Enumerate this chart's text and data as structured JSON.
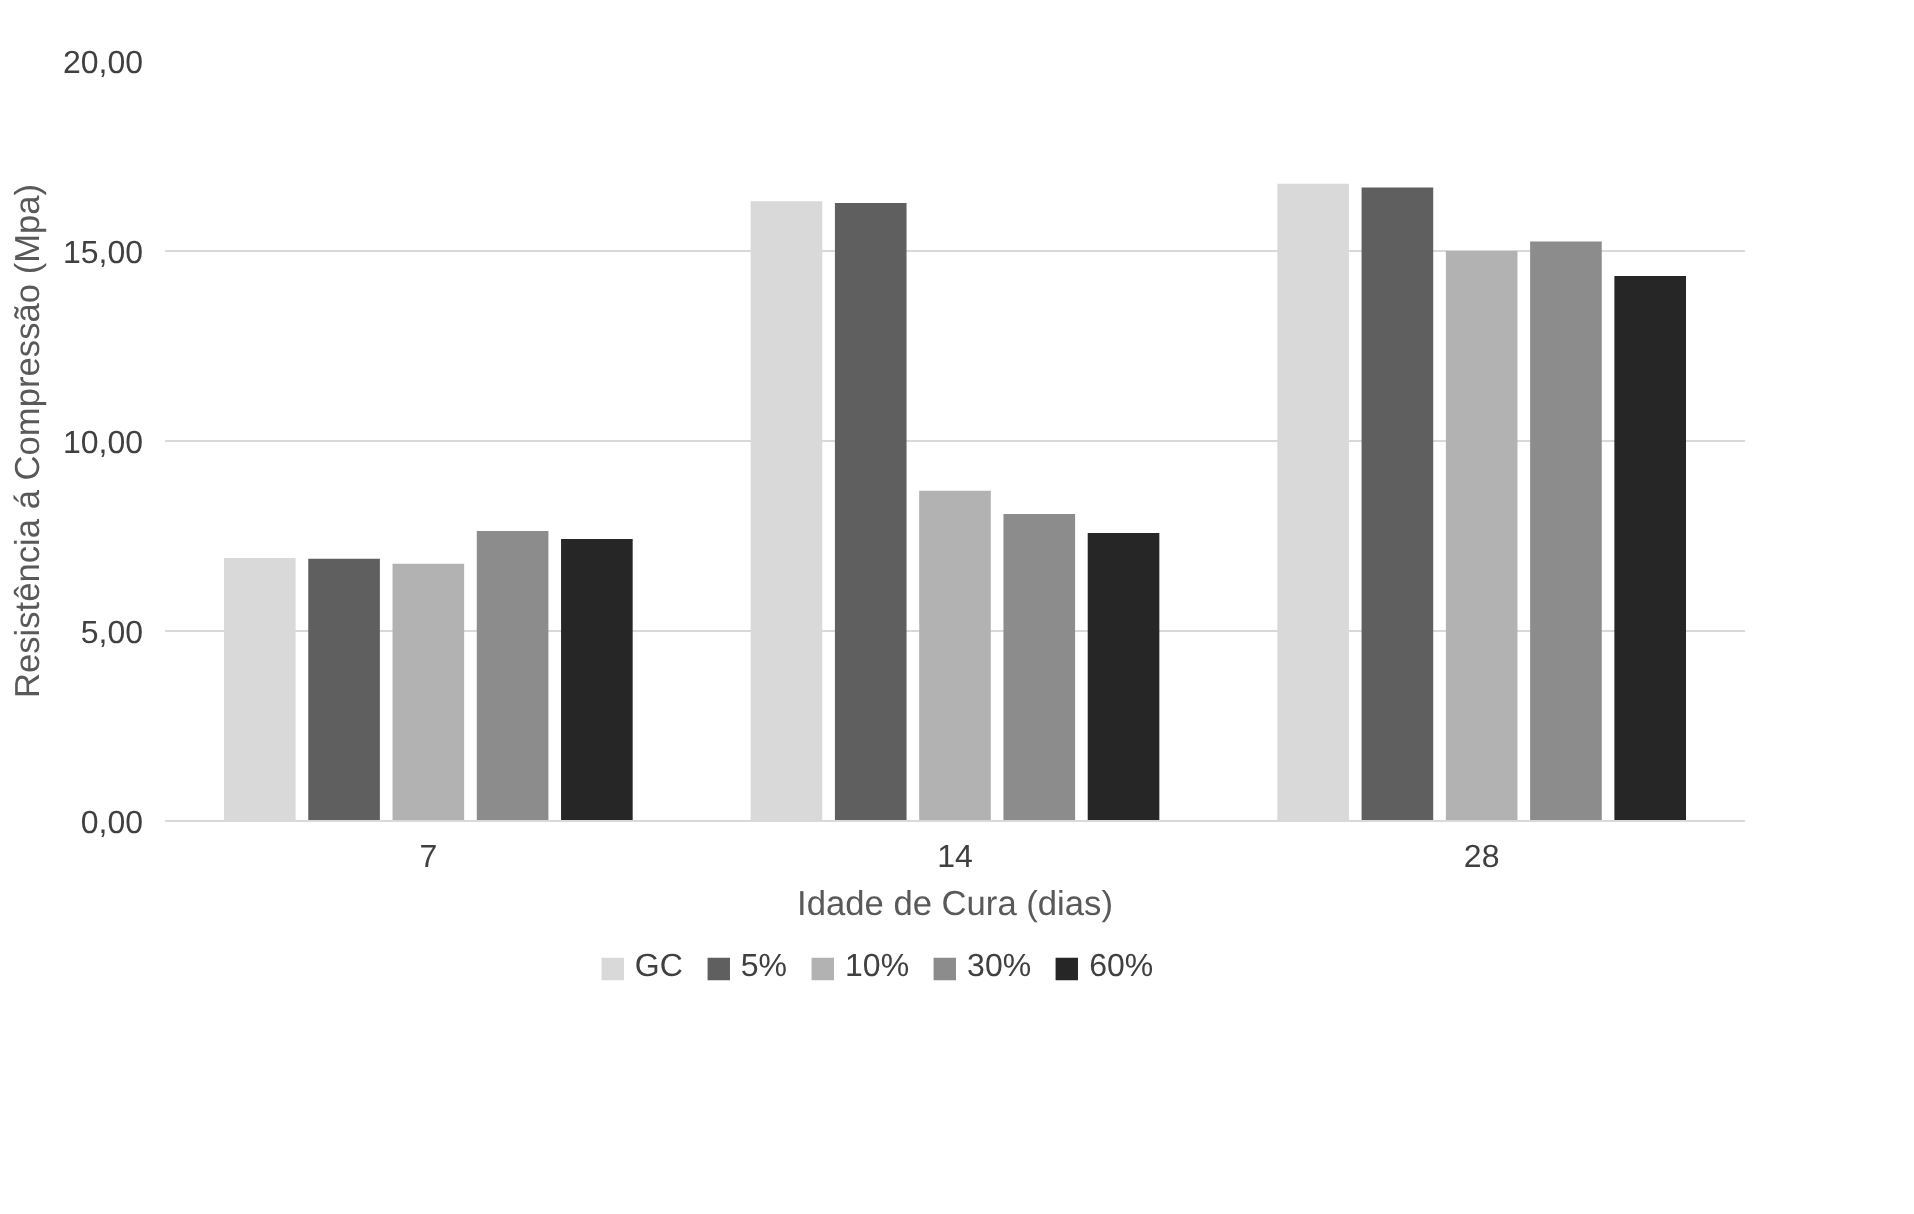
{
  "chart_data": {
    "type": "bar",
    "xlabel": "Idade de Cura (dias)",
    "ylabel": "Resistência á Compressão (Mpa)",
    "categories": [
      "7",
      "14",
      "28"
    ],
    "series": [
      {
        "name": "GC",
        "color": "#d9d9d9",
        "values": [
          6.92,
          16.31,
          16.77
        ]
      },
      {
        "name": "5%",
        "color": "#5f5f5f",
        "values": [
          6.9,
          16.26,
          16.67
        ]
      },
      {
        "name": "10%",
        "color": "#b2b2b2",
        "values": [
          6.77,
          8.69,
          15.0
        ]
      },
      {
        "name": "30%",
        "color": "#8c8c8c",
        "values": [
          7.63,
          8.08,
          15.25
        ]
      },
      {
        "name": "60%",
        "color": "#262626",
        "values": [
          7.42,
          7.58,
          14.34
        ]
      }
    ],
    "ylim": [
      0,
      20
    ],
    "yticks": [
      {
        "value": 0,
        "label": "0,00"
      },
      {
        "value": 5,
        "label": "5,00"
      },
      {
        "value": 10,
        "label": "10,00"
      },
      {
        "value": 15,
        "label": "15,00"
      },
      {
        "value": 20,
        "label": "20,00"
      }
    ],
    "grid": "y",
    "legend": "bottom"
  }
}
